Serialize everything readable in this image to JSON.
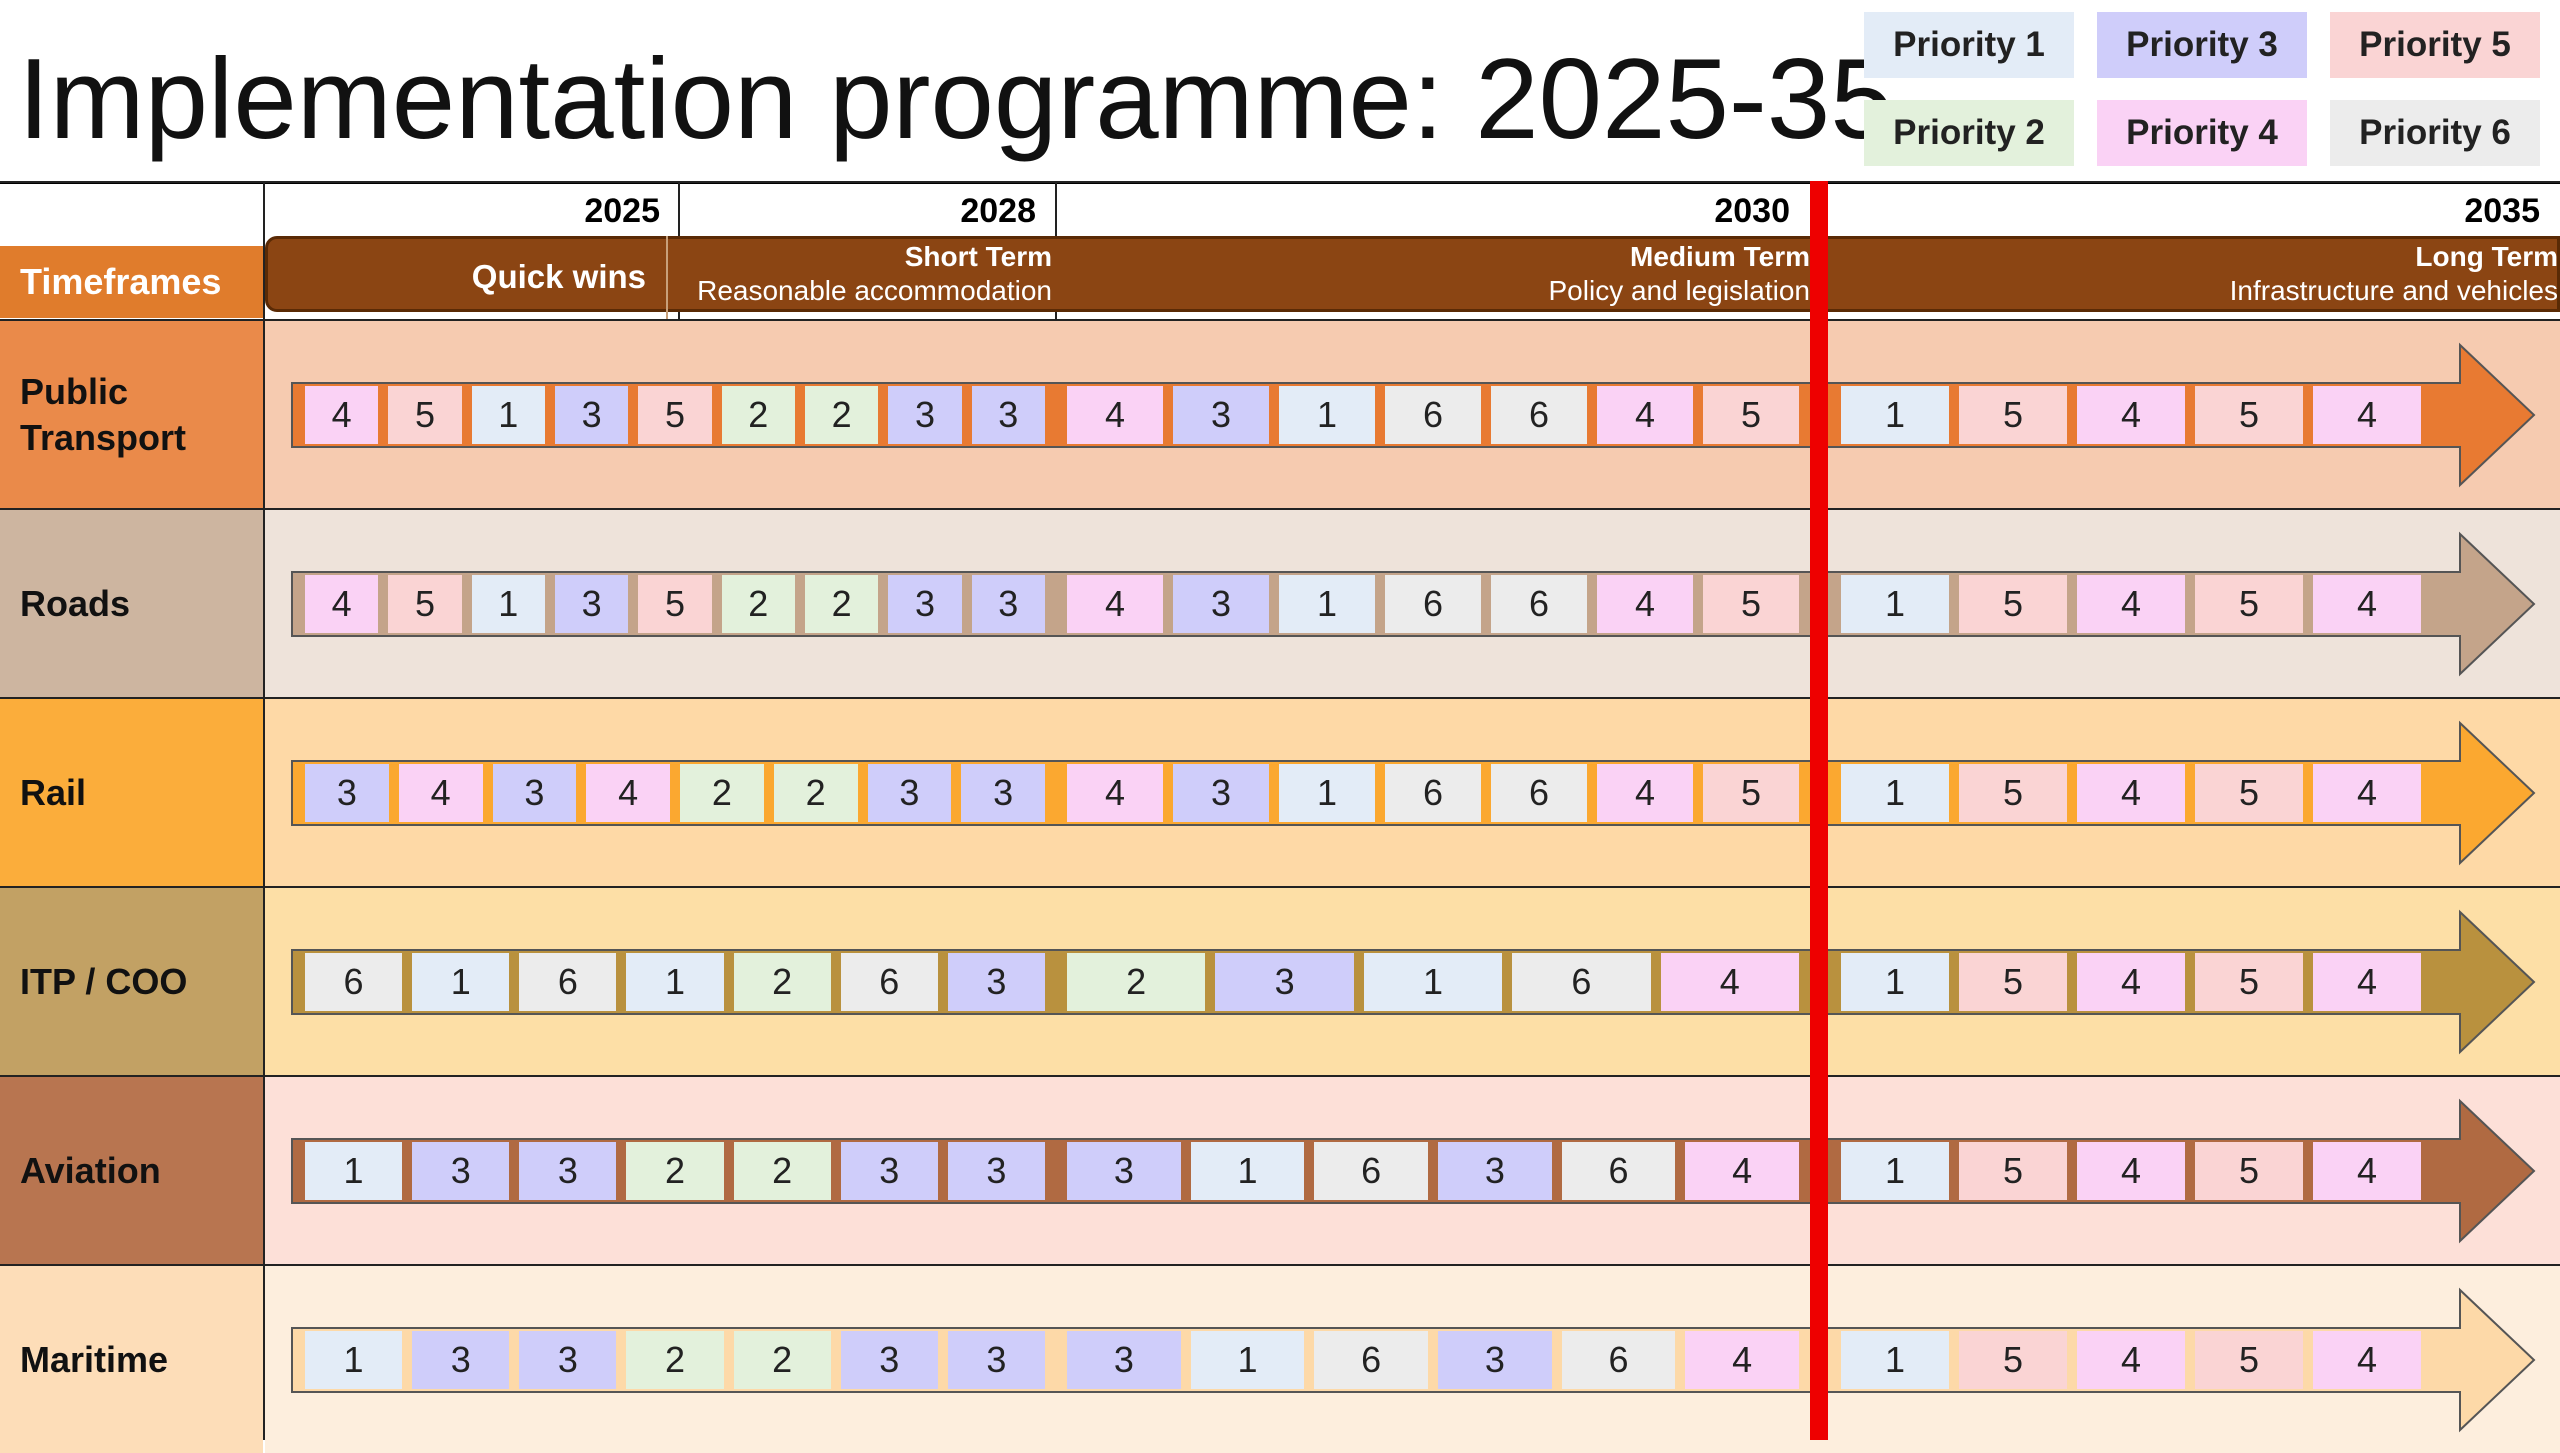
{
  "title": "Implementation programme: 2025-35",
  "legend": [
    {
      "label": "Priority 1",
      "color": "#e3ecf7"
    },
    {
      "label": "Priority 3",
      "color": "#cfcdfa"
    },
    {
      "label": "Priority 5",
      "color": "#fad4d4"
    },
    {
      "label": "Priority 2",
      "color": "#e3f1dc"
    },
    {
      "label": "Priority 4",
      "color": "#fad2f5"
    },
    {
      "label": "Priority 6",
      "color": "#ececec"
    }
  ],
  "priority_colors": {
    "1": "#e3ecf7",
    "2": "#e3f1dc",
    "3": "#cfcdfa",
    "4": "#fad2f5",
    "5": "#fad4d4",
    "6": "#ececec"
  },
  "years": [
    "2025",
    "2028",
    "2030",
    "2035"
  ],
  "timeframes_label": "Timeframes",
  "timeframes": [
    {
      "name": "Quick wins",
      "desc": ""
    },
    {
      "name": "Short Term",
      "desc": "Reasonable accommodation"
    },
    {
      "name": "Medium Term",
      "desc": "Policy and legislation"
    },
    {
      "name": "Long Term",
      "desc": "Infrastructure and vehicles"
    }
  ],
  "rows": [
    {
      "label": "Public\nTransport",
      "label_color": "#ea8a4a",
      "lane_color": "#f6cbb0",
      "arrow_color": "#e87a32",
      "short": [
        "4",
        "5",
        "1",
        "3",
        "5",
        "2",
        "2",
        "3",
        "3"
      ],
      "medium": [
        "4",
        "3",
        "1",
        "6",
        "6",
        "4",
        "5"
      ],
      "long": [
        "1",
        "5",
        "4",
        "5",
        "4"
      ]
    },
    {
      "label": "Roads",
      "label_color": "#cdb5a0",
      "lane_color": "#eee3da",
      "arrow_color": "#c4a48a",
      "short": [
        "4",
        "5",
        "1",
        "3",
        "5",
        "2",
        "2",
        "3",
        "3"
      ],
      "medium": [
        "4",
        "3",
        "1",
        "6",
        "6",
        "4",
        "5"
      ],
      "long": [
        "1",
        "5",
        "4",
        "5",
        "4"
      ]
    },
    {
      "label": "Rail",
      "label_color": "#fbad3b",
      "lane_color": "#fed9a6",
      "arrow_color": "#fba830",
      "short": [
        "3",
        "4",
        "3",
        "4",
        "2",
        "2",
        "3",
        "3"
      ],
      "medium": [
        "4",
        "3",
        "1",
        "6",
        "6",
        "4",
        "5"
      ],
      "long": [
        "1",
        "5",
        "4",
        "5",
        "4"
      ]
    },
    {
      "label": "ITP / COO",
      "label_color": "#c2a164",
      "lane_color": "#fddfa6",
      "arrow_color": "#b9913e",
      "short": [
        "6",
        "1",
        "6",
        "1",
        "2",
        "6",
        "3"
      ],
      "medium": [
        "2",
        "3",
        "1",
        "6",
        "4"
      ],
      "long": [
        "1",
        "5",
        "4",
        "5",
        "4"
      ]
    },
    {
      "label": "Aviation",
      "label_color": "#b87550",
      "lane_color": "#fde0d8",
      "arrow_color": "#b06a42",
      "short": [
        "1",
        "3",
        "3",
        "2",
        "2",
        "3",
        "3"
      ],
      "medium": [
        "3",
        "1",
        "6",
        "3",
        "6",
        "4"
      ],
      "long": [
        "1",
        "5",
        "4",
        "5",
        "4"
      ]
    },
    {
      "label": "Maritime",
      "label_color": "#fdddb8",
      "lane_color": "#fdeedd",
      "arrow_color": "#fdd9a8",
      "short": [
        "1",
        "3",
        "3",
        "2",
        "2",
        "3",
        "3"
      ],
      "medium": [
        "3",
        "1",
        "6",
        "3",
        "6",
        "4"
      ],
      "long": [
        "1",
        "5",
        "4",
        "5",
        "4"
      ]
    }
  ]
}
